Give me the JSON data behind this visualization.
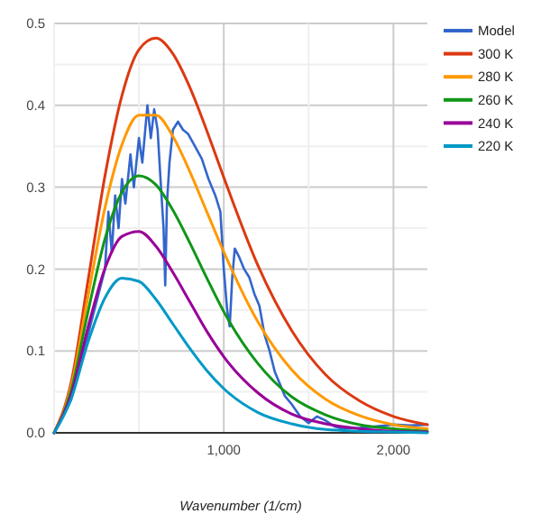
{
  "chart_data": {
    "type": "line",
    "xlabel": "Wavenumber (1/cm)",
    "xlim": [
      0,
      2200
    ],
    "ylim": [
      0,
      0.5
    ],
    "xticks": [
      {
        "value": 0,
        "label": null
      },
      {
        "value": 500,
        "label": null
      },
      {
        "value": 1000,
        "label": "1,000"
      },
      {
        "value": 1500,
        "label": null
      },
      {
        "value": 2000,
        "label": "2,000"
      }
    ],
    "yticks": [
      {
        "value": 0,
        "label": "0.0"
      },
      {
        "value": 0.05,
        "label": null
      },
      {
        "value": 0.1,
        "label": "0.1"
      },
      {
        "value": 0.15,
        "label": null
      },
      {
        "value": 0.2,
        "label": "0.2"
      },
      {
        "value": 0.25,
        "label": null
      },
      {
        "value": 0.3,
        "label": "0.3"
      },
      {
        "value": 0.35,
        "label": null
      },
      {
        "value": 0.4,
        "label": "0.4"
      },
      {
        "value": 0.45,
        "label": null
      },
      {
        "value": 0.5,
        "label": "0.5"
      }
    ],
    "grid": true,
    "legend": "top right",
    "line_style": "solid",
    "marker": "none",
    "series": [
      {
        "name": "Model",
        "color": "#3366cc",
        "x": [
          0,
          100,
          200,
          250,
          300,
          320,
          340,
          360,
          380,
          400,
          420,
          450,
          470,
          500,
          520,
          550,
          570,
          590,
          610,
          630,
          645,
          655,
          665,
          680,
          700,
          730,
          760,
          790,
          830,
          870,
          910,
          950,
          980,
          1000,
          1020,
          1035,
          1050,
          1065,
          1090,
          1120,
          1150,
          1180,
          1210,
          1240,
          1270,
          1300,
          1330,
          1360,
          1400,
          1450,
          1500,
          1550,
          1600,
          1650,
          1700,
          1800,
          1900,
          2000,
          2100,
          2200
        ],
        "values": [
          0,
          0.04,
          0.12,
          0.16,
          0.2,
          0.27,
          0.22,
          0.29,
          0.25,
          0.31,
          0.28,
          0.34,
          0.3,
          0.36,
          0.33,
          0.4,
          0.36,
          0.395,
          0.37,
          0.3,
          0.25,
          0.18,
          0.28,
          0.33,
          0.37,
          0.38,
          0.37,
          0.365,
          0.35,
          0.335,
          0.31,
          0.29,
          0.27,
          0.2,
          0.15,
          0.13,
          0.19,
          0.225,
          0.215,
          0.2,
          0.19,
          0.17,
          0.155,
          0.12,
          0.1,
          0.075,
          0.06,
          0.045,
          0.035,
          0.02,
          0.012,
          0.02,
          0.015,
          0.008,
          0.005,
          0.006,
          0.008,
          0.01,
          0.009,
          0.01
        ]
      },
      {
        "name": "300 K",
        "color": "#dc3912",
        "x": [
          0,
          100,
          200,
          300,
          400,
          500,
          600,
          700,
          800,
          900,
          1000,
          1200,
          1400,
          1600,
          1800,
          2000,
          2200
        ],
        "values": [
          0,
          0.061,
          0.186,
          0.314,
          0.412,
          0.468,
          0.482,
          0.463,
          0.422,
          0.369,
          0.312,
          0.205,
          0.125,
          0.071,
          0.039,
          0.02,
          0.01
        ]
      },
      {
        "name": "280 K",
        "color": "#ff9900",
        "x": [
          0,
          100,
          200,
          300,
          400,
          500,
          600,
          700,
          800,
          900,
          1000,
          1200,
          1400,
          1600,
          1800,
          2000,
          2200
        ],
        "values": [
          0,
          0.056,
          0.167,
          0.275,
          0.352,
          0.388,
          0.388,
          0.362,
          0.319,
          0.27,
          0.221,
          0.136,
          0.077,
          0.041,
          0.021,
          0.01,
          0.005
        ]
      },
      {
        "name": "260 K",
        "color": "#109618",
        "x": [
          0,
          100,
          200,
          300,
          400,
          500,
          600,
          700,
          800,
          900,
          1000,
          1200,
          1400,
          1600,
          1800,
          2000,
          2200
        ],
        "values": [
          0,
          0.051,
          0.148,
          0.237,
          0.294,
          0.314,
          0.303,
          0.272,
          0.232,
          0.189,
          0.148,
          0.085,
          0.044,
          0.022,
          0.01,
          0.005,
          0.002
        ]
      },
      {
        "name": "240 K",
        "color": "#990099",
        "x": [
          0,
          100,
          200,
          300,
          400,
          500,
          600,
          700,
          800,
          900,
          1000,
          1200,
          1400,
          1600,
          1800,
          2000,
          2200
        ],
        "values": [
          0,
          0.046,
          0.129,
          0.201,
          0.24,
          0.246,
          0.228,
          0.196,
          0.16,
          0.124,
          0.093,
          0.049,
          0.023,
          0.011,
          0.005,
          0.002,
          0.001
        ]
      },
      {
        "name": "220 K",
        "color": "#0099c6",
        "x": [
          0,
          100,
          200,
          300,
          400,
          500,
          600,
          700,
          800,
          900,
          1000,
          1200,
          1400,
          1600,
          1800,
          2000,
          2200
        ],
        "values": [
          0,
          0.041,
          0.111,
          0.165,
          0.189,
          0.185,
          0.163,
          0.133,
          0.103,
          0.076,
          0.054,
          0.025,
          0.011,
          0.004,
          0.002,
          0.001,
          0
        ]
      }
    ]
  }
}
